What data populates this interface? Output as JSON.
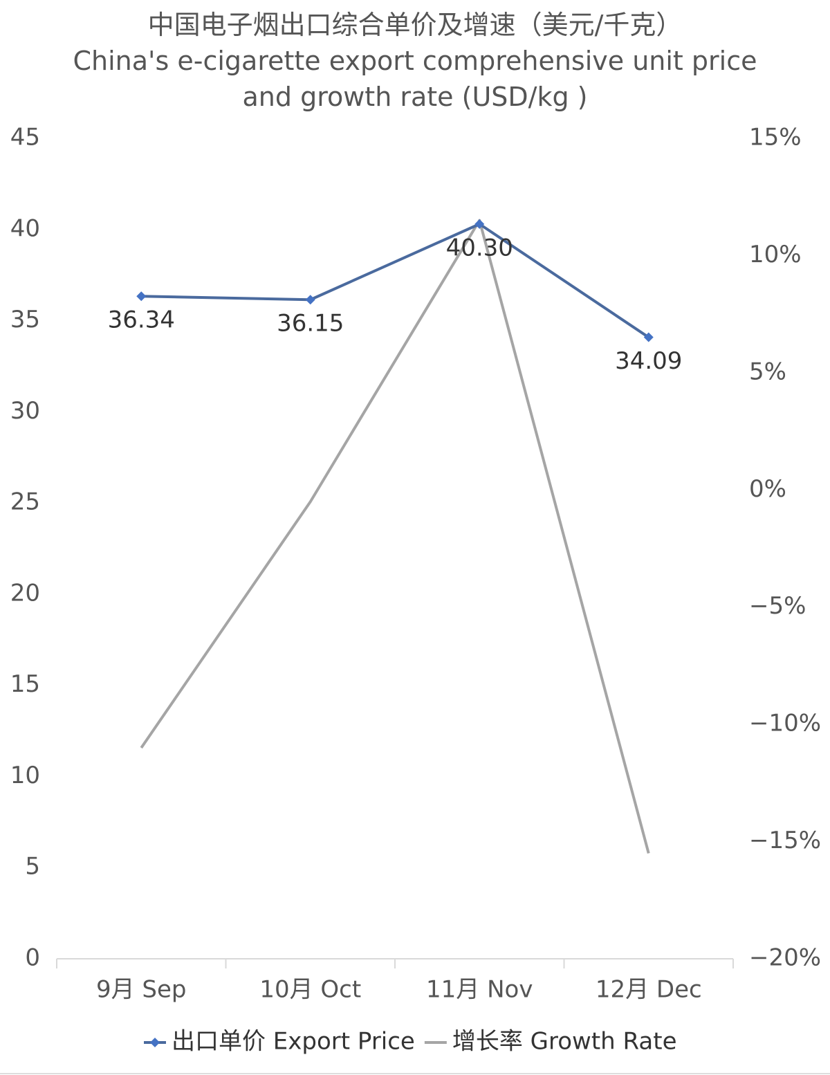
{
  "chart_data": {
    "type": "line",
    "title": "中国电子烟出口综合单价及增速（美元/千克）",
    "subtitle": "China's e-cigarette export comprehensive unit price and growth rate (USD/kg )",
    "categories": [
      "9月 Sep",
      "10月 Oct",
      "11月 Nov",
      "12月 Dec"
    ],
    "series": [
      {
        "name": "出口单价 Export Price",
        "color": "#4a6a9e",
        "marker": "diamond",
        "values": [
          36.34,
          36.15,
          40.3,
          34.09
        ],
        "value_labels": [
          "36.34",
          "36.15",
          "40.30",
          "34.09"
        ]
      },
      {
        "name": "增长率 Growth Rate",
        "color": "#a5a5a5",
        "axis": "y2",
        "values": [
          -11.0,
          -0.5,
          11.5,
          -15.5
        ]
      }
    ],
    "ylim": [
      0,
      45
    ],
    "yticks": [
      0,
      5,
      10,
      15,
      20,
      25,
      30,
      35,
      40,
      45
    ],
    "y2lim": [
      -20,
      15
    ],
    "y2ticks": [
      {
        "value": -20,
        "label": "−20%"
      },
      {
        "value": -15,
        "label": "−15%"
      },
      {
        "value": -10,
        "label": "−10%"
      },
      {
        "value": -5,
        "label": "−5%"
      },
      {
        "value": 0,
        "label": "0%"
      },
      {
        "value": 5,
        "label": "5%"
      },
      {
        "value": 10,
        "label": "10%"
      },
      {
        "value": 15,
        "label": "15%"
      }
    ],
    "grid": false,
    "legend": "bottom"
  }
}
